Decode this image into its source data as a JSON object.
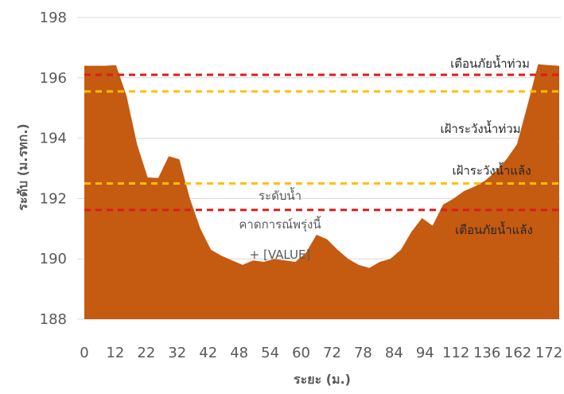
{
  "chart_data": {
    "type": "area",
    "xlabel": "ระยะ (ม.)",
    "ylabel": "ระดับ (ม.รทก.)",
    "ylim": [
      188,
      198
    ],
    "yticks": [
      188,
      190,
      192,
      194,
      196,
      198
    ],
    "xtick_labels": [
      "0",
      "12",
      "22",
      "32",
      "42",
      "48",
      "54",
      "60",
      "72",
      "78",
      "84",
      "94",
      "112",
      "136",
      "162",
      "172"
    ],
    "grid": "horizontal",
    "fill_color": "#c55a11",
    "series": [
      {
        "values": [
          196.4,
          196.4,
          196.4,
          196.42,
          195.4,
          193.8,
          192.7,
          192.68,
          193.4,
          193.3,
          192.0,
          191.0,
          190.3,
          190.1,
          189.95,
          189.8,
          189.95,
          189.9,
          190.0,
          189.95,
          189.9,
          190.2,
          190.8,
          190.65,
          190.3,
          190.0,
          189.8,
          189.7,
          189.9,
          190.0,
          190.3,
          190.9,
          191.35,
          191.1,
          191.8,
          192.0,
          192.25,
          192.4,
          192.6,
          192.9,
          193.3,
          193.8,
          195.1,
          196.45,
          196.42,
          196.4
        ]
      }
    ],
    "reference_lines": [
      {
        "label": "เตือนภัยน้ำท่วม",
        "value": 196.1,
        "color": "#e01b1b",
        "style": "dashed"
      },
      {
        "label": "เฝ้าระวังน้ำท่วม",
        "value": 195.55,
        "color": "#ffc000",
        "style": "dashed"
      },
      {
        "label": "เฝ้าระวังน้ำแล้ง",
        "value": 192.5,
        "color": "#ffc000",
        "style": "dashed"
      },
      {
        "label": "เตือนภัยน้ำแล้ง",
        "value": 191.62,
        "color": "#e01b1b",
        "style": "dashed"
      }
    ],
    "annotation": {
      "lines": [
        "ระดับน้ำ",
        "คาดการณ์พรุ่งนี้",
        "+ [VALUE]"
      ]
    }
  }
}
